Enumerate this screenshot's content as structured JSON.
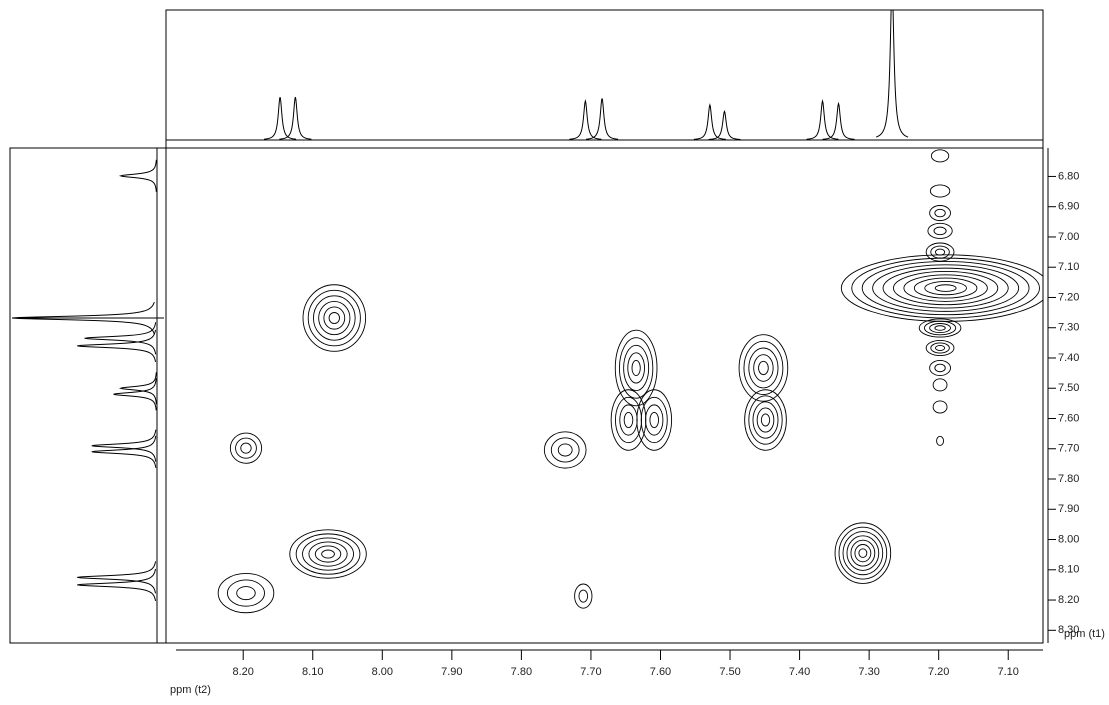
{
  "chart_data": {
    "type": "contour",
    "x_label": "ppm (t2)",
    "y_label": "ppm (t1)",
    "xlim": [
      8.311,
      7.05
    ],
    "ylim": [
      6.706,
      8.342
    ],
    "xticks": [
      {
        "value": 8.2,
        "label": "8.20"
      },
      {
        "value": 8.1,
        "label": "8.10"
      },
      {
        "value": 8.0,
        "label": "8.00"
      },
      {
        "value": 7.9,
        "label": "7.90"
      },
      {
        "value": 7.8,
        "label": "7.80"
      },
      {
        "value": 7.7,
        "label": "7.70"
      },
      {
        "value": 7.6,
        "label": "7.60"
      },
      {
        "value": 7.5,
        "label": "7.50"
      },
      {
        "value": 7.4,
        "label": "7.40"
      },
      {
        "value": 7.3,
        "label": "7.30"
      },
      {
        "value": 7.2,
        "label": "7.20"
      },
      {
        "value": 7.1,
        "label": "7.10"
      }
    ],
    "yticks": [
      {
        "value": 6.8,
        "label": "6.80"
      },
      {
        "value": 6.9,
        "label": "6.90"
      },
      {
        "value": 7.0,
        "label": "7.00"
      },
      {
        "value": 7.1,
        "label": "7.10"
      },
      {
        "value": 7.2,
        "label": "7.20"
      },
      {
        "value": 7.3,
        "label": "7.30"
      },
      {
        "value": 7.4,
        "label": "7.40"
      },
      {
        "value": 7.5,
        "label": "7.50"
      },
      {
        "value": 7.6,
        "label": "7.60"
      },
      {
        "value": 7.7,
        "label": "7.70"
      },
      {
        "value": 7.8,
        "label": "7.80"
      },
      {
        "value": 7.9,
        "label": "7.90"
      },
      {
        "value": 8.0,
        "label": "8.00"
      },
      {
        "value": 8.1,
        "label": "8.10"
      },
      {
        "value": 8.2,
        "label": "8.20"
      },
      {
        "value": 8.3,
        "label": "8.30"
      }
    ],
    "peaks": {
      "x": [
        8.069,
        8.196,
        8.078,
        8.196,
        7.635,
        7.646,
        7.609,
        7.737,
        7.711,
        7.452,
        7.449,
        7.309,
        7.19,
        7.198,
        7.198,
        7.198,
        7.198,
        7.198,
        7.198,
        7.198,
        7.198,
        7.198,
        7.198,
        7.198
      ],
      "y": [
        7.268,
        7.698,
        8.048,
        8.177,
        7.433,
        7.605,
        7.605,
        7.704,
        8.187,
        7.433,
        7.605,
        8.045,
        7.169,
        6.732,
        6.848,
        6.921,
        6.98,
        7.05,
        7.301,
        7.367,
        7.433,
        7.489,
        7.562,
        7.674
      ],
      "levels": [
        6,
        3,
        6,
        3,
        5,
        4,
        4,
        3,
        2,
        5,
        5,
        7,
        10,
        1,
        1,
        2,
        2,
        3,
        4,
        3,
        2,
        1,
        1,
        1
      ],
      "x_width": [
        0.09,
        0.045,
        0.11,
        0.08,
        0.06,
        0.05,
        0.05,
        0.06,
        0.025,
        0.07,
        0.06,
        0.08,
        0.3,
        0.025,
        0.028,
        0.03,
        0.035,
        0.04,
        0.06,
        0.04,
        0.03,
        0.02,
        0.02,
        0.01
      ],
      "y_width": [
        0.22,
        0.1,
        0.16,
        0.13,
        0.25,
        0.2,
        0.2,
        0.12,
        0.08,
        0.22,
        0.2,
        0.2,
        0.22,
        0.04,
        0.04,
        0.05,
        0.05,
        0.06,
        0.06,
        0.05,
        0.05,
        0.04,
        0.04,
        0.03
      ]
    },
    "top_projection": {
      "x": [
        8.147,
        8.125,
        7.708,
        7.684,
        7.529,
        7.508,
        7.367,
        7.344,
        7.267
      ],
      "height": [
        0.33,
        0.33,
        0.3,
        0.32,
        0.27,
        0.22,
        0.3,
        0.28,
        1.2
      ]
    },
    "left_projection": {
      "y": [
        6.798,
        7.268,
        7.335,
        7.36,
        7.5,
        7.52,
        7.69,
        7.71,
        8.125,
        8.15
      ],
      "height": [
        0.25,
        1.0,
        0.5,
        0.55,
        0.25,
        0.3,
        0.45,
        0.45,
        0.55,
        0.55
      ]
    },
    "color": "#000000"
  }
}
